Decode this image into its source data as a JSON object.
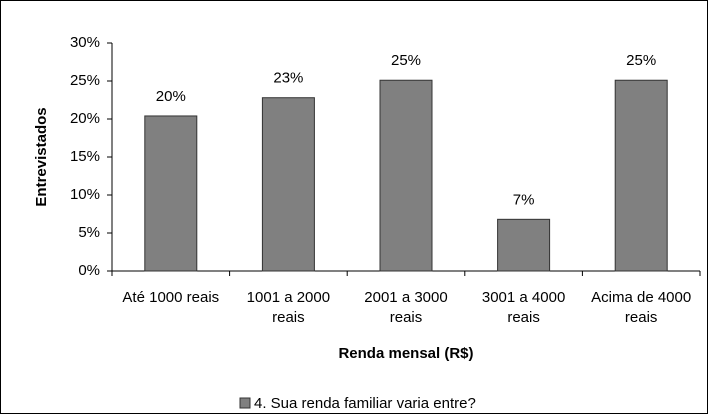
{
  "chart_data": {
    "type": "bar",
    "x_label": "Renda mensal (R$)",
    "y_label": "Entrevistados",
    "categories": [
      "Até 1000 reais",
      "1001 a 2000 reais",
      "2001 a 3000 reais",
      "3001 a 4000 reais",
      "Acima de 4000 reais"
    ],
    "series": [
      {
        "name": "4. Sua renda familiar varia entre?",
        "color": "#808080",
        "values": [
          20.4,
          22.8,
          25.1,
          6.8,
          25.1
        ],
        "value_labels": [
          "20%",
          "23%",
          "25%",
          "7%",
          "25%"
        ]
      }
    ],
    "ylim": [
      0,
      30
    ],
    "yticks": [
      {
        "value": 0,
        "label": "0%"
      },
      {
        "value": 5,
        "label": "5%"
      },
      {
        "value": 10,
        "label": "10%"
      },
      {
        "value": 15,
        "label": "15%"
      },
      {
        "value": 20,
        "label": "20%"
      },
      {
        "value": 25,
        "label": "25%"
      },
      {
        "value": 30,
        "label": "30%"
      }
    ],
    "grid": false,
    "legend": "bottom"
  }
}
